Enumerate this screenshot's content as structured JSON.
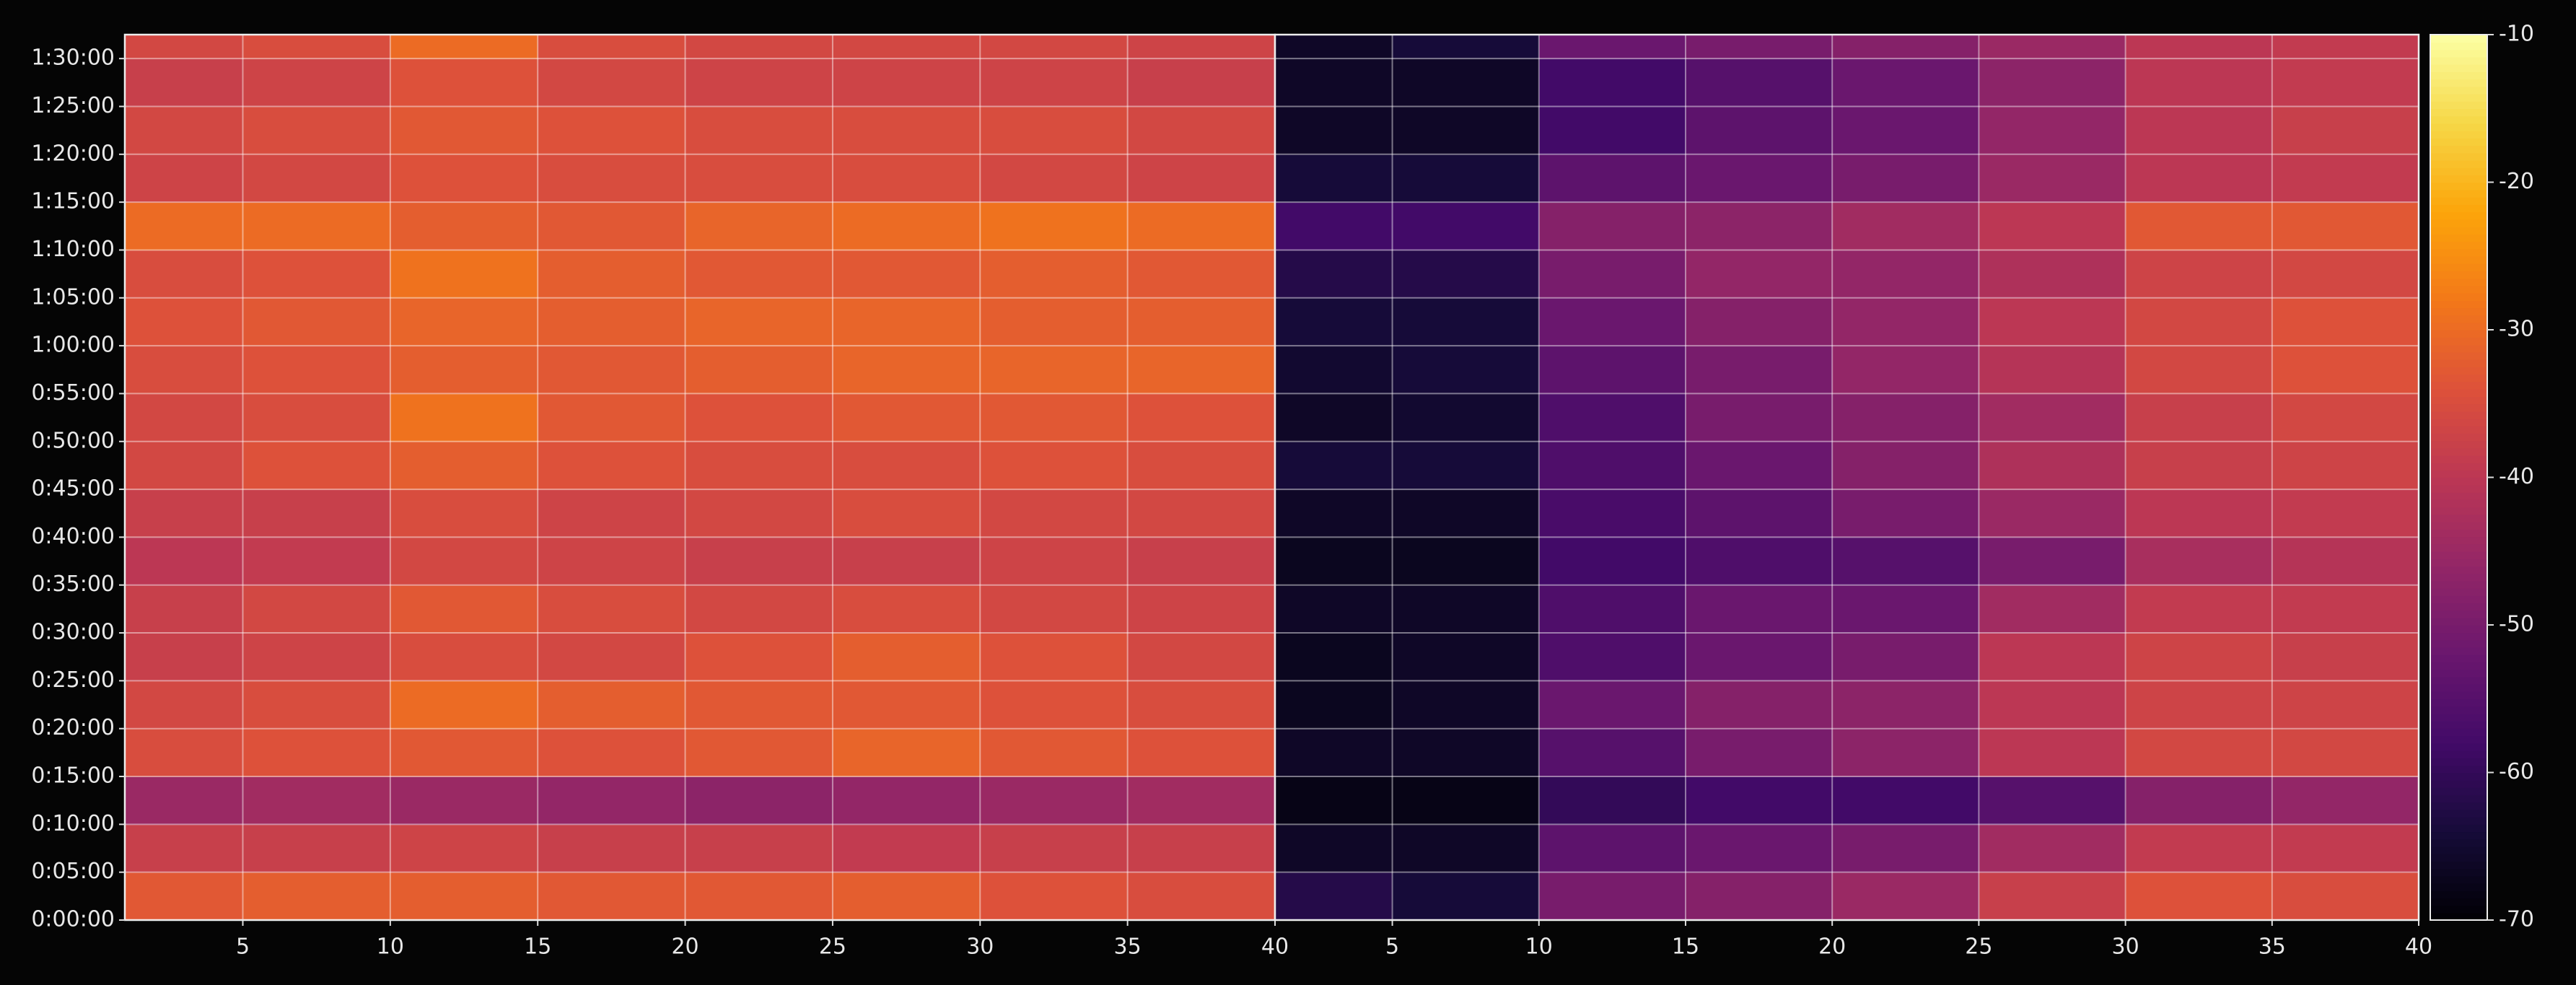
{
  "chart_data": {
    "type": "heatmap",
    "colormap": "inferno",
    "clim": [
      -70,
      -10
    ],
    "cticks": [
      -70,
      -60,
      -50,
      -40,
      -30,
      -20,
      -10
    ],
    "grid": true,
    "ylim": [
      0,
      92.5
    ],
    "ybins": [
      0,
      5,
      10,
      15,
      20,
      25,
      30,
      35,
      40,
      45,
      50,
      55,
      60,
      65,
      70,
      75,
      80,
      85,
      90,
      92.5
    ],
    "yticks": [
      {
        "value": 0,
        "label": "0:00:00"
      },
      {
        "value": 5,
        "label": "0:05:00"
      },
      {
        "value": 10,
        "label": "0:10:00"
      },
      {
        "value": 15,
        "label": "0:15:00"
      },
      {
        "value": 20,
        "label": "0:20:00"
      },
      {
        "value": 25,
        "label": "0:25:00"
      },
      {
        "value": 30,
        "label": "0:30:00"
      },
      {
        "value": 35,
        "label": "0:35:00"
      },
      {
        "value": 40,
        "label": "0:40:00"
      },
      {
        "value": 45,
        "label": "0:45:00"
      },
      {
        "value": 50,
        "label": "0:50:00"
      },
      {
        "value": 55,
        "label": "0:55:00"
      },
      {
        "value": 60,
        "label": "1:00:00"
      },
      {
        "value": 65,
        "label": "1:05:00"
      },
      {
        "value": 70,
        "label": "1:10:00"
      },
      {
        "value": 75,
        "label": "1:15:00"
      },
      {
        "value": 80,
        "label": "1:20:00"
      },
      {
        "value": 85,
        "label": "1:25:00"
      },
      {
        "value": 90,
        "label": "1:30:00"
      }
    ],
    "panels": [
      {
        "xlim": [
          1,
          40
        ],
        "xticks": [
          5,
          10,
          15,
          20,
          25,
          30,
          35,
          40
        ],
        "xbins": [
          1,
          5,
          10,
          15,
          20,
          25,
          30,
          35,
          40
        ],
        "values": [
          [
            -33,
            -32,
            -32,
            -33,
            -33,
            -32,
            -34,
            -35
          ],
          [
            -38,
            -38,
            -37,
            -38,
            -38,
            -39,
            -38,
            -38
          ],
          [
            -45,
            -44,
            -45,
            -46,
            -47,
            -46,
            -45,
            -44
          ],
          [
            -35,
            -34,
            -33,
            -34,
            -33,
            -31,
            -33,
            -34
          ],
          [
            -36,
            -35,
            -30,
            -32,
            -33,
            -33,
            -34,
            -35
          ],
          [
            -38,
            -37,
            -35,
            -36,
            -34,
            -32,
            -34,
            -36
          ],
          [
            -38,
            -36,
            -33,
            -35,
            -36,
            -35,
            -36,
            -37
          ],
          [
            -40,
            -39,
            -36,
            -37,
            -38,
            -38,
            -37,
            -38
          ],
          [
            -38,
            -38,
            -35,
            -37,
            -36,
            -35,
            -36,
            -36
          ],
          [
            -36,
            -34,
            -32,
            -34,
            -35,
            -35,
            -34,
            -35
          ],
          [
            -36,
            -35,
            -29,
            -33,
            -34,
            -33,
            -33,
            -34
          ],
          [
            -35,
            -34,
            -32,
            -33,
            -32,
            -31,
            -31,
            -31
          ],
          [
            -34,
            -33,
            -31,
            -32,
            -31,
            -31,
            -32,
            -32
          ],
          [
            -35,
            -34,
            -29,
            -32,
            -33,
            -33,
            -32,
            -33
          ],
          [
            -30,
            -30,
            -32,
            -33,
            -31,
            -30,
            -29,
            -30
          ],
          [
            -37,
            -36,
            -34,
            -35,
            -35,
            -35,
            -36,
            -37
          ],
          [
            -36,
            -35,
            -33,
            -34,
            -35,
            -35,
            -35,
            -36
          ],
          [
            -38,
            -37,
            -34,
            -36,
            -37,
            -37,
            -37,
            -38
          ],
          [
            -36,
            -35,
            -30,
            -35,
            -36,
            -36,
            -36,
            -37
          ]
        ]
      },
      {
        "xlim": [
          1,
          40
        ],
        "xticks": [
          5,
          10,
          15,
          20,
          25,
          30,
          35,
          40
        ],
        "xbins": [
          1,
          5,
          10,
          15,
          20,
          25,
          30,
          35,
          40
        ],
        "values": [
          [
            -62,
            -64,
            -50,
            -48,
            -45,
            -38,
            -34,
            -35
          ],
          [
            -66,
            -66,
            -54,
            -52,
            -50,
            -44,
            -39,
            -39
          ],
          [
            -68,
            -68,
            -60,
            -58,
            -58,
            -55,
            -48,
            -46
          ],
          [
            -66,
            -66,
            -55,
            -50,
            -47,
            -40,
            -36,
            -36
          ],
          [
            -67,
            -66,
            -52,
            -48,
            -47,
            -40,
            -37,
            -37
          ],
          [
            -67,
            -66,
            -56,
            -52,
            -50,
            -40,
            -37,
            -38
          ],
          [
            -66,
            -66,
            -56,
            -52,
            -52,
            -44,
            -39,
            -39
          ],
          [
            -67,
            -67,
            -58,
            -56,
            -55,
            -50,
            -43,
            -41
          ],
          [
            -66,
            -66,
            -57,
            -54,
            -50,
            -45,
            -40,
            -39
          ],
          [
            -64,
            -64,
            -56,
            -52,
            -48,
            -42,
            -38,
            -37
          ],
          [
            -66,
            -65,
            -56,
            -50,
            -48,
            -44,
            -38,
            -36
          ],
          [
            -65,
            -64,
            -54,
            -50,
            -46,
            -41,
            -36,
            -34
          ],
          [
            -64,
            -64,
            -52,
            -48,
            -46,
            -40,
            -36,
            -34
          ],
          [
            -62,
            -62,
            -50,
            -46,
            -46,
            -42,
            -37,
            -36
          ],
          [
            -58,
            -58,
            -48,
            -47,
            -44,
            -40,
            -33,
            -33
          ],
          [
            -64,
            -64,
            -54,
            -52,
            -50,
            -45,
            -40,
            -39
          ],
          [
            -66,
            -66,
            -58,
            -54,
            -52,
            -46,
            -40,
            -38
          ],
          [
            -66,
            -66,
            -58,
            -55,
            -52,
            -47,
            -40,
            -39
          ],
          [
            -66,
            -64,
            -52,
            -50,
            -48,
            -45,
            -40,
            -39
          ]
        ]
      }
    ]
  }
}
